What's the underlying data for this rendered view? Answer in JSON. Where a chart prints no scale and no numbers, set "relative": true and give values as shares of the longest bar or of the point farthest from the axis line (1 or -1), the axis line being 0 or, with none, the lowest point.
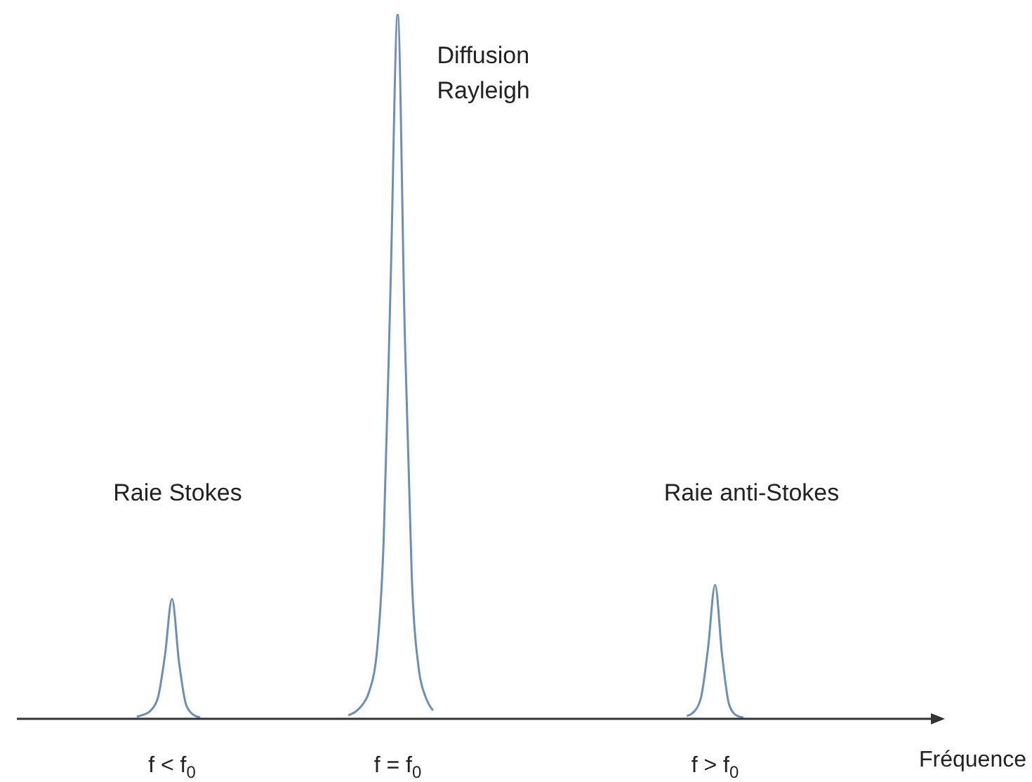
{
  "chart_data": {
    "type": "line",
    "relative": true,
    "xlabel": "Fréquence",
    "grid": false,
    "legend": false,
    "marker": "none",
    "line_style": "solid",
    "categories": [
      null,
      null,
      null,
      null,
      null,
      null,
      null,
      null,
      null,
      null,
      null,
      null,
      null,
      null,
      null,
      null,
      null,
      null,
      null,
      null,
      null,
      null,
      "f < f$_{0}$",
      null,
      null,
      null,
      null,
      null,
      null,
      null,
      null,
      null,
      null,
      null,
      null,
      null,
      null,
      null,
      null,
      null,
      null,
      null,
      null,
      null,
      null,
      null,
      null,
      null,
      null,
      null,
      null,
      null,
      null,
      null,
      "f = f$_{0}$",
      null,
      null,
      null,
      null,
      null,
      null,
      null,
      null,
      null,
      null,
      null,
      null,
      null,
      null,
      null,
      null,
      null,
      null,
      null,
      null,
      null,
      null,
      null,
      null,
      null,
      null,
      null,
      null,
      null,
      null,
      null,
      null,
      null,
      null,
      null,
      null,
      null,
      null,
      null,
      null,
      null,
      null,
      null,
      null,
      "f > f$_{0}$",
      null,
      null,
      null,
      null,
      null,
      null,
      null,
      null,
      null,
      null,
      null,
      null,
      null,
      null,
      null,
      null,
      null,
      null,
      null,
      null,
      null,
      null,
      null,
      null,
      null,
      null,
      null,
      null,
      null,
      null,
      null
    ],
    "series": [
      {
        "color": "#6a8fbb",
        "values": [
          null,
          null,
          null,
          null,
          null,
          null,
          null,
          null,
          null,
          null,
          null,
          null,
          null,
          null,
          null,
          null,
          null,
          0.003,
          0.006,
          0.012,
          0.03,
          0.09,
          0.17,
          0.08,
          0.02,
          0.006,
          0.002,
          null,
          null,
          null,
          null,
          null,
          null,
          null,
          null,
          null,
          null,
          null,
          null,
          null,
          null,
          null,
          null,
          null,
          null,
          null,
          null,
          0.005,
          0.01,
          0.02,
          0.04,
          0.09,
          0.25,
          0.62,
          1,
          0.55,
          0.2,
          0.07,
          0.03,
          0.012,
          null,
          null,
          null,
          null,
          null,
          null,
          null,
          null,
          null,
          null,
          null,
          null,
          null,
          null,
          null,
          null,
          null,
          null,
          null,
          null,
          null,
          null,
          null,
          null,
          null,
          null,
          null,
          null,
          null,
          null,
          null,
          null,
          null,
          null,
          null,
          0.004,
          0.01,
          0.03,
          0.1,
          0.19,
          0.09,
          0.02,
          0.005,
          0.002,
          null,
          null,
          null,
          null,
          null,
          null,
          null,
          null,
          null,
          null,
          null,
          null,
          null,
          null,
          null,
          null,
          null,
          null,
          null,
          null,
          null,
          null,
          null,
          null,
          null,
          null,
          null
        ]
      }
    ],
    "annotations": [
      "Raie Stokes",
      "Diffusion\nRayleigh",
      "Raie anti-Stokes"
    ]
  }
}
